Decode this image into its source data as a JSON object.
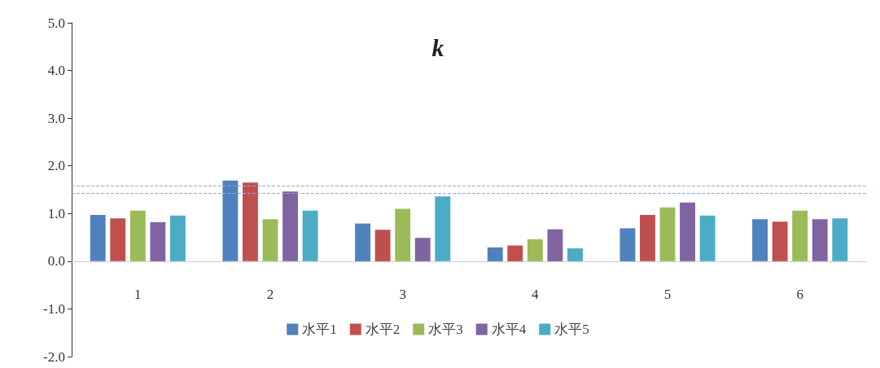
{
  "chart_data": {
    "type": "bar",
    "title": "k",
    "categories": [
      "1",
      "2",
      "3",
      "4",
      "5",
      "6"
    ],
    "series": [
      {
        "name": "水平1",
        "color": "#4f81bd",
        "values": [
          0.97,
          1.69,
          0.79,
          0.29,
          0.69,
          0.88
        ]
      },
      {
        "name": "水平2",
        "color": "#c0504d",
        "values": [
          0.9,
          1.65,
          0.66,
          0.33,
          0.97,
          0.83
        ]
      },
      {
        "name": "水平3",
        "color": "#9bbb59",
        "values": [
          1.06,
          0.88,
          1.1,
          0.46,
          1.13,
          1.06
        ]
      },
      {
        "name": "水平4",
        "color": "#8064a2",
        "values": [
          0.82,
          1.46,
          0.49,
          0.67,
          1.23,
          0.88
        ]
      },
      {
        "name": "水平5",
        "color": "#4bacc6",
        "values": [
          0.96,
          1.06,
          1.36,
          0.27,
          0.96,
          0.9
        ]
      }
    ],
    "ylim": [
      -2,
      5
    ],
    "yticks": [
      {
        "value": -2,
        "label": "-2.0"
      },
      {
        "value": -1,
        "label": "-1.0"
      },
      {
        "value": 0,
        "label": "0.0"
      },
      {
        "value": 1,
        "label": "1.0"
      },
      {
        "value": 2,
        "label": "2.0"
      },
      {
        "value": 3,
        "label": "3.0"
      },
      {
        "value": 4,
        "label": "4.0"
      },
      {
        "value": 5,
        "label": "5.0"
      }
    ],
    "ref_lines": [
      {
        "axis": "y",
        "value": 1.58,
        "color": "#8eaadb",
        "line_style": "dashed"
      },
      {
        "axis": "y",
        "value": 1.42,
        "color": "#8eaadb",
        "line_style": "dashed"
      }
    ],
    "grid": false,
    "legend": "bottom"
  }
}
